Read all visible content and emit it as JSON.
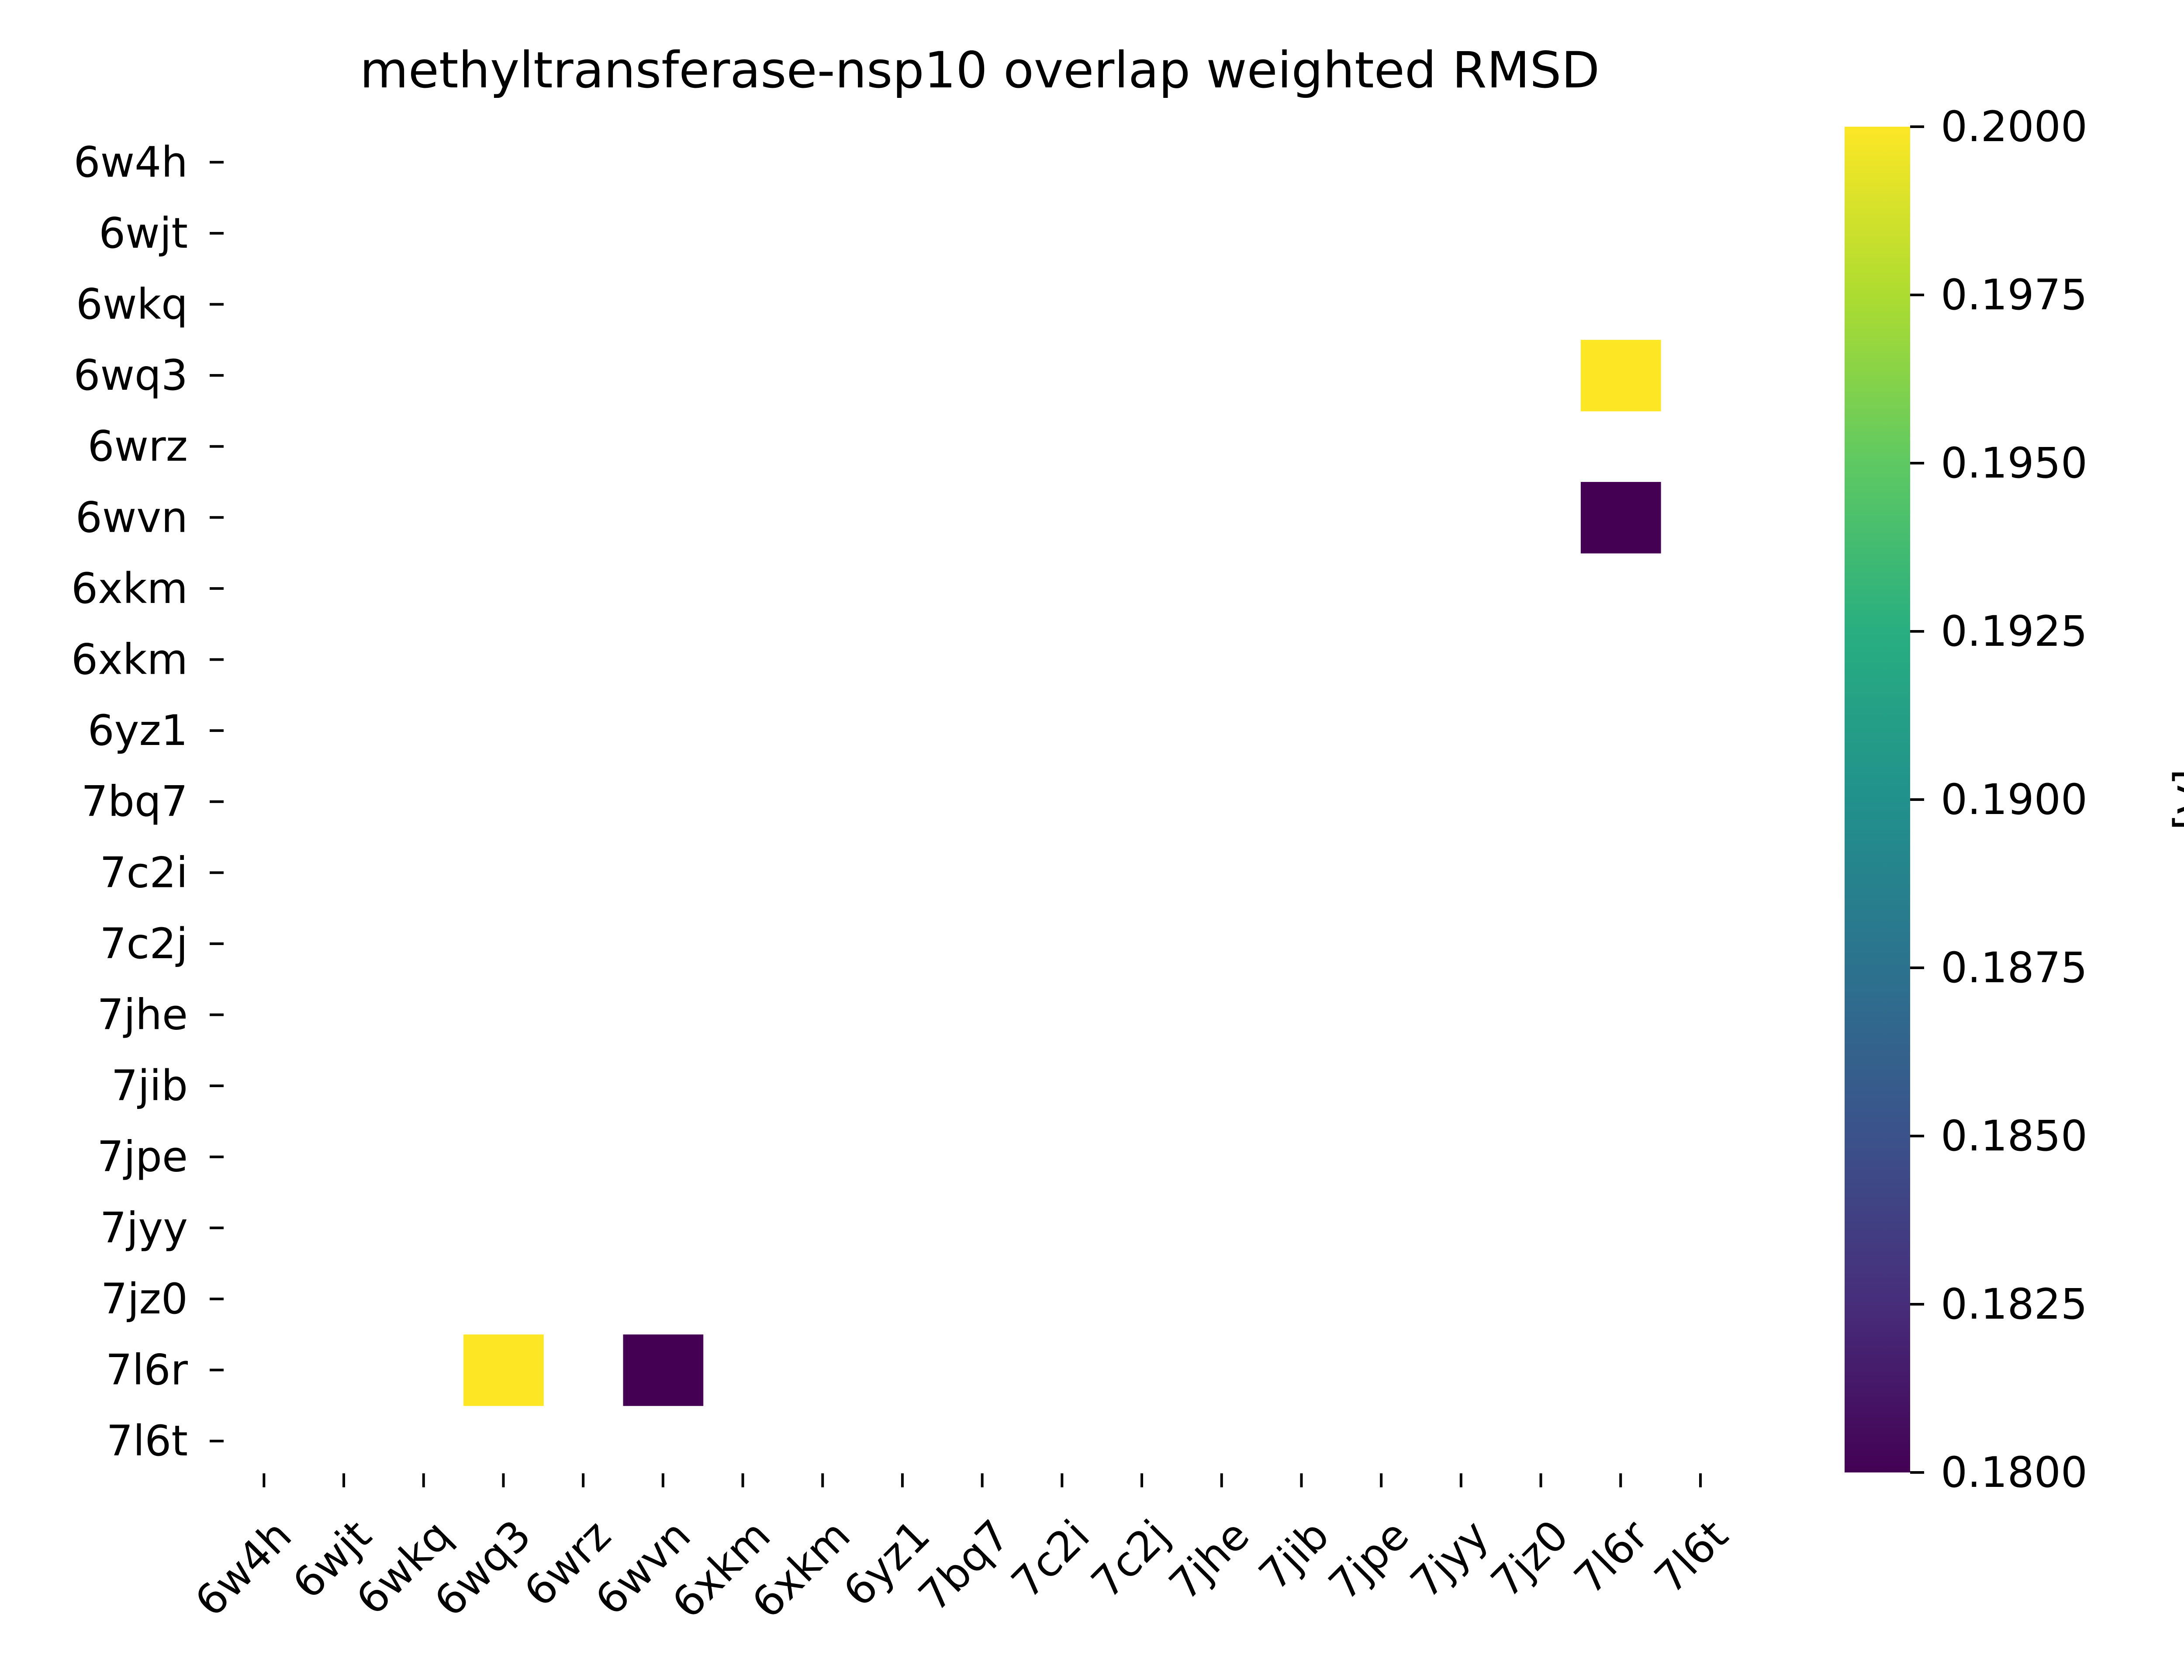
{
  "chart_data": {
    "type": "heatmap",
    "title": "methyltransferase-nsp10 overlap weighted RMSD",
    "xlabel": "",
    "ylabel": "",
    "x_labels": [
      "6w4h",
      "6wjt",
      "6wkq",
      "6wq3",
      "6wrz",
      "6wvn",
      "6xkm",
      "6xkm",
      "6yz1",
      "7bq7",
      "7c2i",
      "7c2j",
      "7jhe",
      "7jib",
      "7jpe",
      "7jyy",
      "7jz0",
      "7l6r",
      "7l6t"
    ],
    "y_labels": [
      "6w4h",
      "6wjt",
      "6wkq",
      "6wq3",
      "6wrz",
      "6wvn",
      "6xkm",
      "6xkm",
      "6yz1",
      "7bq7",
      "7c2i",
      "7c2j",
      "7jhe",
      "7jib",
      "7jpe",
      "7jyy",
      "7jz0",
      "7l6r",
      "7l6t"
    ],
    "cells": [
      {
        "row": "6wq3",
        "col": "7l6r",
        "value": 0.2
      },
      {
        "row": "6wvn",
        "col": "7l6r",
        "value": 0.18
      },
      {
        "row": "7l6r",
        "col": "6wq3",
        "value": 0.2
      },
      {
        "row": "7l6r",
        "col": "6wvn",
        "value": 0.18
      }
    ],
    "cells_index": [
      [
        3,
        17
      ],
      [
        5,
        17
      ],
      [
        17,
        3
      ],
      [
        17,
        5
      ]
    ],
    "colorbar": {
      "label": "[Å]",
      "colormap": "viridis",
      "vmin": 0.18,
      "vmax": 0.2,
      "ticks": [
        "0.1800",
        "0.1825",
        "0.1850",
        "0.1875",
        "0.1900",
        "0.1925",
        "0.1950",
        "0.1975",
        "0.2000"
      ]
    },
    "grid": false
  }
}
